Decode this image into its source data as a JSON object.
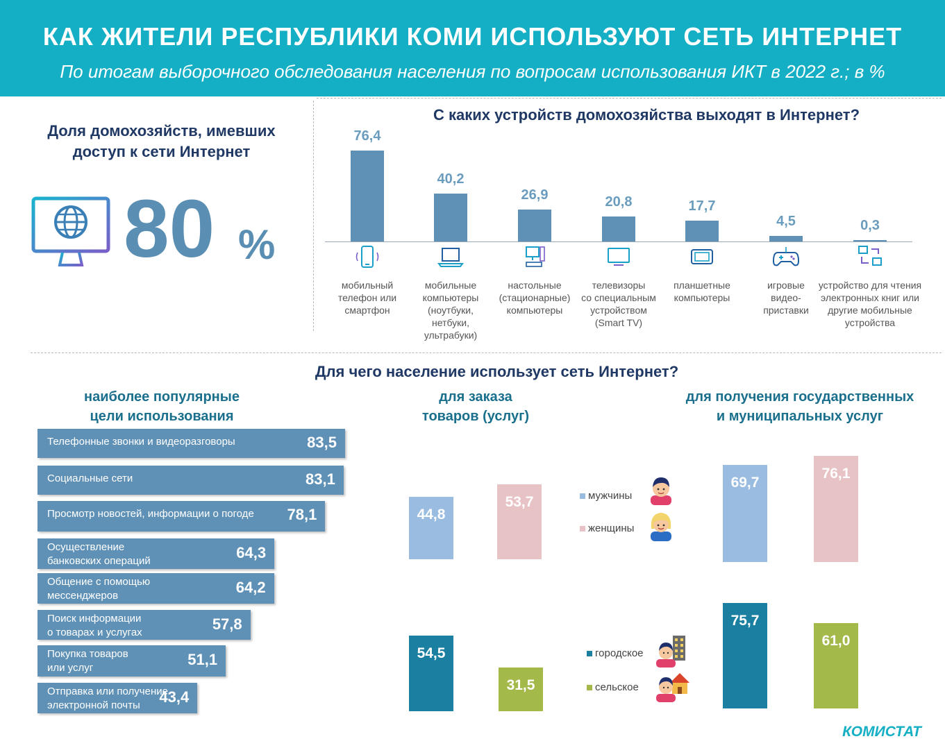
{
  "header": {
    "title": "КАК ЖИТЕЛИ РЕСПУБЛИКИ КОМИ ИСПОЛЬЗУЮТ СЕТЬ ИНТЕРНЕТ",
    "subtitle": "По итогам выборочного обследования населения по вопросам использования ИКТ в 2022 г.; в %"
  },
  "access": {
    "heading_line1": "Доля домохозяйств, имевших",
    "heading_line2": "доступ к сети Интернет",
    "value": "80",
    "unit": "%",
    "icon": "monitor-globe-icon"
  },
  "colors": {
    "banner": "#14afc4",
    "bar": "#5f91b7",
    "men": "#99bce0",
    "women": "#e8c3c6",
    "urban": "#1a7fa0",
    "rural": "#a3b94a"
  },
  "chart_data": [
    {
      "type": "bar",
      "title": "С каких устройств домохозяйства выходят в Интернет?",
      "categories": [
        [
          "мобильный",
          "телефон или",
          "смартфон"
        ],
        [
          "мобильные",
          "компьютеры",
          "(ноутбуки,",
          "нетбуки,",
          "ультрабуки)"
        ],
        [
          "настольные",
          "(стационарные)",
          "компьютеры"
        ],
        [
          "телевизоры",
          "со специальным",
          "устройством",
          "(Smart TV)"
        ],
        [
          "планшетные",
          "компьютеры"
        ],
        [
          "игровые",
          "видео-",
          "приставки"
        ],
        [
          "устройство для чтения",
          "электронных книг или",
          "другие мобильные",
          "устройства"
        ]
      ],
      "values": [
        76.4,
        40.2,
        26.9,
        20.8,
        17.7,
        4.5,
        0.3
      ],
      "value_labels": [
        "76,4",
        "40,2",
        "26,9",
        "20,8",
        "17,7",
        "4,5",
        "0,3"
      ],
      "icons": [
        "smartphone-icon",
        "laptop-icon",
        "desktop-icon",
        "tv-icon",
        "tablet-icon",
        "gamepad-icon",
        "sync-devices-icon"
      ]
    },
    {
      "type": "bar",
      "title": "наиболее популярные цели использования",
      "title_lines": [
        "наиболее популярные",
        "цели использования"
      ],
      "orientation": "horizontal",
      "categories": [
        [
          "Телефонные звонки и видеоразговоры"
        ],
        [
          "Социальные сети"
        ],
        [
          "Просмотр новостей, информации о погоде"
        ],
        [
          "Осуществление",
          "банковских операций"
        ],
        [
          "Общение с помощью",
          "мессенджеров"
        ],
        [
          "Поиск информации",
          "о товарах и услугах"
        ],
        [
          "Покупка товаров",
          "или услуг"
        ],
        [
          "Отправка или получение",
          "электронной почты"
        ]
      ],
      "values": [
        83.5,
        83.1,
        78.1,
        64.3,
        64.2,
        57.8,
        51.1,
        43.4
      ],
      "value_labels": [
        "83,5",
        "83,1",
        "78,1",
        "64,3",
        "64,2",
        "57,8",
        "51,1",
        "43,4"
      ]
    },
    {
      "type": "bar",
      "title": "для заказа товаров (услуг)",
      "title_lines": [
        "для заказа",
        "товаров (услуг)"
      ],
      "series": [
        {
          "name": "мужчины",
          "values": [
            44.8
          ],
          "value_labels": [
            "44,8"
          ]
        },
        {
          "name": "женщины",
          "values": [
            53.7
          ],
          "value_labels": [
            "53,7"
          ]
        },
        {
          "name": "городское",
          "values": [
            54.5
          ],
          "value_labels": [
            "54,5"
          ]
        },
        {
          "name": "сельское",
          "values": [
            31.5
          ],
          "value_labels": [
            "31,5"
          ]
        }
      ]
    },
    {
      "type": "bar",
      "title": "для получения государственных и муниципальных услуг",
      "title_lines": [
        "для получения государственных",
        "и муниципальных услуг"
      ],
      "series": [
        {
          "name": "мужчины",
          "values": [
            69.7
          ],
          "value_labels": [
            "69,7"
          ]
        },
        {
          "name": "женщины",
          "values": [
            76.1
          ],
          "value_labels": [
            "76,1"
          ]
        },
        {
          "name": "городское",
          "values": [
            75.7
          ],
          "value_labels": [
            "75,7"
          ]
        },
        {
          "name": "сельское",
          "values": [
            61.0
          ],
          "value_labels": [
            "61,0"
          ]
        }
      ]
    }
  ],
  "purpose_heading": "Для чего население использует сеть Интернет?",
  "legend": {
    "gender": [
      {
        "label": "мужчины",
        "icon": "man-avatar-icon"
      },
      {
        "label": "женщины",
        "icon": "woman-avatar-icon"
      }
    ],
    "settlement": [
      {
        "label": "городское",
        "icon": "city-dweller-icon"
      },
      {
        "label": "сельское",
        "icon": "village-dweller-icon"
      }
    ]
  },
  "footer": {
    "brand": "КОМИСТАТ"
  }
}
